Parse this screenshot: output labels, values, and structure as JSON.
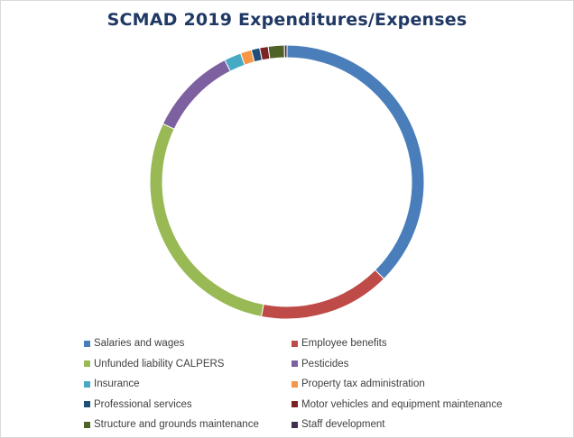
{
  "chart_data": {
    "type": "pie",
    "title": "SCMAD 2019 Expenditures/Expenses",
    "style": "donut",
    "legend_position": "bottom",
    "categories": [
      "Salaries and wages",
      "Employee benefits",
      "Unfunded liability CALPERS",
      "Pesticides",
      "Insurance",
      "Property tax administration",
      "Professional services",
      "Motor vehicles and equipment maintenance",
      "Structure and grounds maintenance",
      "Staff development"
    ],
    "values": [
      37.5,
      15.5,
      29.0,
      10.5,
      2.0,
      1.3,
      1.0,
      1.0,
      1.9,
      0.3
    ],
    "colors": [
      "#4a7ebb",
      "#be4b48",
      "#98b954",
      "#7d60a0",
      "#46aac5",
      "#f79646",
      "#1f4e79",
      "#7b2423",
      "#4f6228",
      "#403152"
    ]
  }
}
